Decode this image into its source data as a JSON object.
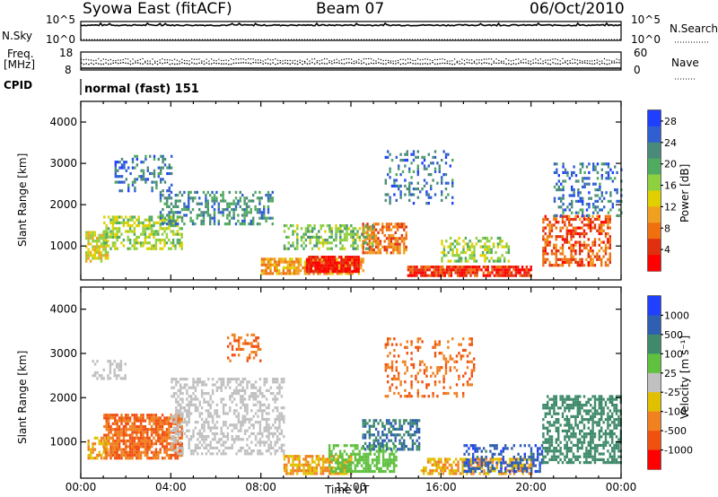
{
  "header": {
    "station": "Syowa East (fitACF)",
    "beam": "Beam 07",
    "date": "06/Oct/2010"
  },
  "labels": {
    "nsky": "N.Sky",
    "freq_line1": "Freq.",
    "freq_line2": "[MHz]",
    "cpid": "CPID",
    "nsearch": "N.Search",
    "nave": "Nave",
    "cpid_value": "normal (fast) 151",
    "noise_ticks_top": "10^5",
    "noise_ticks_bottom": "10^0",
    "freq_ticks": [
      "18",
      "8"
    ],
    "nave_ticks": [
      "60",
      "0"
    ]
  },
  "chart_data": [
    {
      "type": "line",
      "title": "Syowa East (fitACF) Beam 07 06/Oct/2010",
      "panel": "noise",
      "series": [
        {
          "name": "N.Sky",
          "level": 10000.0
        },
        {
          "name": "N.Search",
          "level": 1.0
        }
      ]
    },
    {
      "type": "scatter",
      "panel": "frequency_nave",
      "series": [
        {
          "name": "Freq. [MHz]",
          "value": 12
        },
        {
          "name": "Nave",
          "value": 35
        }
      ]
    },
    {
      "type": "heatmap",
      "panel": "power",
      "xlabel": "Time UT",
      "ylabel": "Slant Range [km]",
      "xlim_hours": [
        0,
        24
      ],
      "ylim": [
        180,
        4500
      ],
      "yticks": [
        "1000",
        "2000",
        "3000",
        "4000"
      ],
      "colorbar": {
        "label": "Power [dB]",
        "ticks": [
          "4",
          "8",
          "12",
          "16",
          "20",
          "24",
          "28"
        ],
        "range": [
          0,
          30
        ],
        "colors": [
          "#1f3fff",
          "#2f5fd0",
          "#4a8a7a",
          "#50aa60",
          "#8fd040",
          "#e0d000",
          "#f0a020",
          "#f07010",
          "#e03010",
          "#ff0000"
        ]
      },
      "regions": [
        {
          "t0": 0.2,
          "t1": 1.2,
          "r0": 600,
          "r1": 1300,
          "v": 16,
          "d": 0.7
        },
        {
          "t0": 1.0,
          "t1": 4.5,
          "r0": 900,
          "r1": 1700,
          "v": 14,
          "d": 0.55
        },
        {
          "t0": 3.5,
          "t1": 8.5,
          "r0": 1500,
          "r1": 2300,
          "v": 8,
          "d": 0.45
        },
        {
          "t0": 1.5,
          "t1": 4.0,
          "r0": 2300,
          "r1": 3200,
          "v": 6,
          "d": 0.3
        },
        {
          "t0": 8.0,
          "t1": 12.5,
          "r0": 300,
          "r1": 700,
          "v": 20,
          "d": 0.8
        },
        {
          "t0": 10.0,
          "t1": 12.3,
          "r0": 350,
          "r1": 700,
          "v": 28,
          "d": 0.85
        },
        {
          "t0": 12.5,
          "t1": 14.5,
          "r0": 800,
          "r1": 1500,
          "v": 22,
          "d": 0.6
        },
        {
          "t0": 9.0,
          "t1": 13.0,
          "r0": 900,
          "r1": 1500,
          "v": 12,
          "d": 0.5
        },
        {
          "t0": 14.5,
          "t1": 20.0,
          "r0": 250,
          "r1": 500,
          "v": 26,
          "d": 0.85
        },
        {
          "t0": 16.0,
          "t1": 19.0,
          "r0": 600,
          "r1": 1200,
          "v": 14,
          "d": 0.45
        },
        {
          "t0": 20.5,
          "t1": 23.5,
          "r0": 500,
          "r1": 1700,
          "v": 24,
          "d": 0.55
        },
        {
          "t0": 21.0,
          "t1": 24.0,
          "r0": 1700,
          "r1": 3000,
          "v": 6,
          "d": 0.3
        },
        {
          "t0": 13.5,
          "t1": 16.5,
          "r0": 2000,
          "r1": 3300,
          "v": 6,
          "d": 0.25
        }
      ]
    },
    {
      "type": "heatmap",
      "panel": "velocity",
      "xlabel": "Time UT",
      "ylabel": "Slant Range [km]",
      "xlim_hours": [
        0,
        24
      ],
      "ylim": [
        180,
        4500
      ],
      "yticks": [
        "1000",
        "2000",
        "3000",
        "4000"
      ],
      "xticks": [
        "00:00",
        "04:00",
        "08:00",
        "12:00",
        "16:00",
        "20:00",
        "00:00"
      ],
      "colorbar": {
        "label": "Velocity [m s⁻¹]",
        "ticks": [
          "1000",
          "500",
          "100",
          "25",
          "-25",
          "-100",
          "-500",
          "-1000"
        ],
        "colors": [
          "#2040ff",
          "#2f5fb0",
          "#3f8a6a",
          "#60c040",
          "#c0c0c0",
          "#e0c000",
          "#f08020",
          "#f05010",
          "#ff0000"
        ]
      },
      "regions": [
        {
          "t0": 1.0,
          "t1": 4.5,
          "r0": 600,
          "r1": 1600,
          "v": -500,
          "d": 0.75
        },
        {
          "t0": 0.3,
          "t1": 1.2,
          "r0": 600,
          "r1": 1100,
          "v": -100,
          "d": 0.5
        },
        {
          "t0": 4.0,
          "t1": 9.0,
          "r0": 700,
          "r1": 2400,
          "v": 0,
          "d": 0.45
        },
        {
          "t0": 0.5,
          "t1": 2.0,
          "r0": 2400,
          "r1": 2800,
          "v": 0,
          "d": 0.4
        },
        {
          "t0": 9.0,
          "t1": 12.0,
          "r0": 250,
          "r1": 700,
          "v": -100,
          "d": 0.7
        },
        {
          "t0": 11.0,
          "t1": 14.0,
          "r0": 300,
          "r1": 900,
          "v": 60,
          "d": 0.6
        },
        {
          "t0": 12.5,
          "t1": 15.0,
          "r0": 800,
          "r1": 1500,
          "v": 500,
          "d": 0.55
        },
        {
          "t0": 15.0,
          "t1": 20.0,
          "r0": 250,
          "r1": 600,
          "v": -100,
          "d": 0.6
        },
        {
          "t0": 17.0,
          "t1": 20.5,
          "r0": 300,
          "r1": 900,
          "v": 800,
          "d": 0.45
        },
        {
          "t0": 20.5,
          "t1": 24.0,
          "r0": 500,
          "r1": 2000,
          "v": 300,
          "d": 0.6
        },
        {
          "t0": 6.5,
          "t1": 8.0,
          "r0": 2800,
          "r1": 3400,
          "v": -500,
          "d": 0.35
        },
        {
          "t0": 13.5,
          "t1": 17.5,
          "r0": 2000,
          "r1": 3300,
          "v": -500,
          "d": 0.25
        }
      ]
    }
  ]
}
